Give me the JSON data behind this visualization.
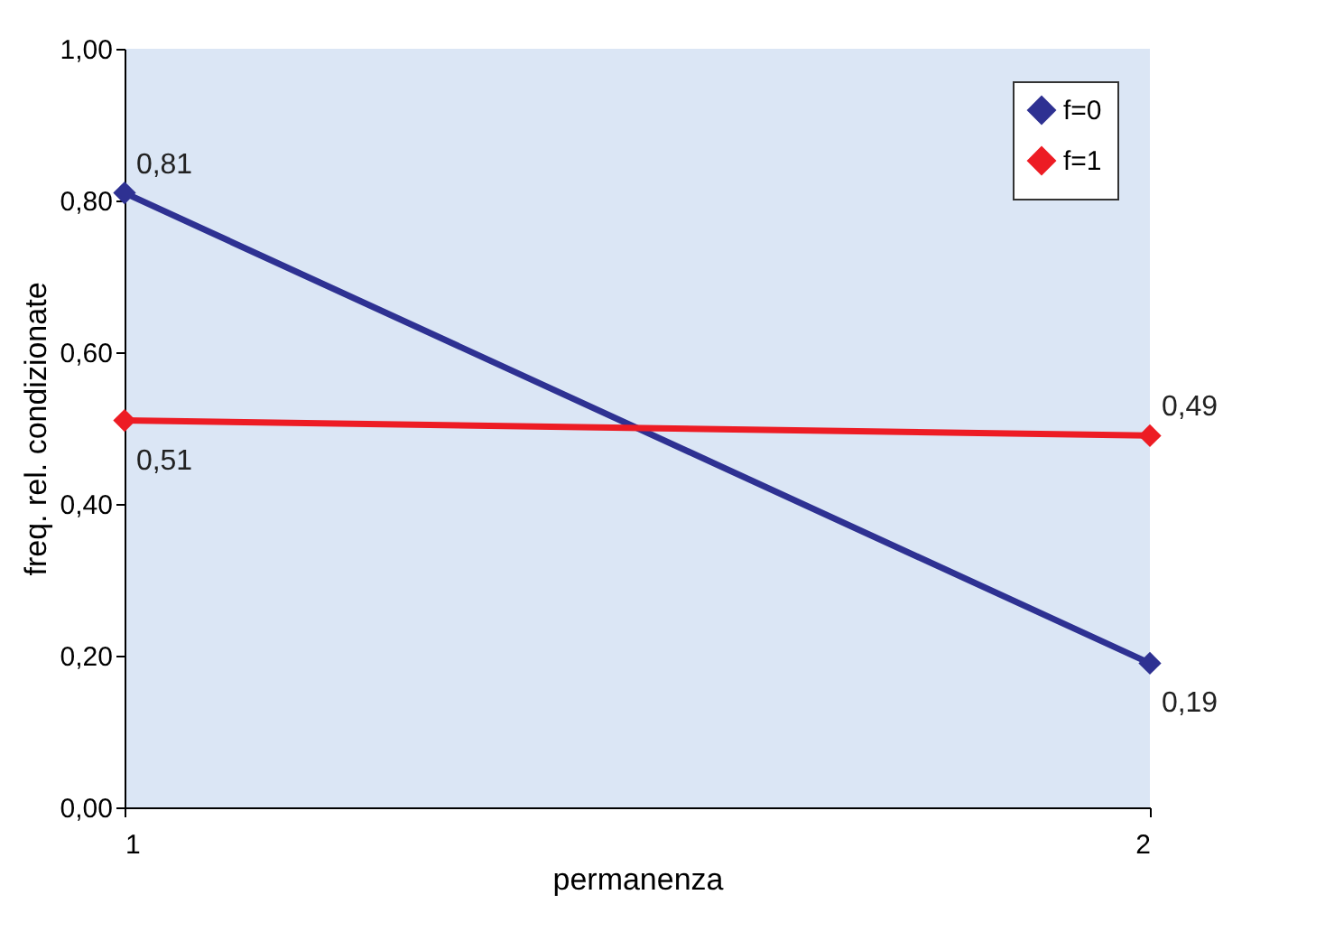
{
  "chart_data": {
    "type": "line",
    "xlabel": "permanenza",
    "ylabel": "freq. rel. condizionate",
    "x": [
      1,
      2
    ],
    "xlim": [
      1,
      2
    ],
    "xticks": [
      1,
      2
    ],
    "ylim": [
      0,
      1
    ],
    "yticks": [
      {
        "value": 0,
        "label": "0,00"
      },
      {
        "value": 0.2,
        "label": "0,20"
      },
      {
        "value": 0.4,
        "label": "0,40"
      },
      {
        "value": 0.6,
        "label": "0,60"
      },
      {
        "value": 0.8,
        "label": "0,80"
      },
      {
        "value": 1,
        "label": "1,00"
      }
    ],
    "series": [
      {
        "name": "f=0",
        "color": "#2e3192",
        "values": [
          0.81,
          0.19
        ],
        "value_labels": [
          "0,81",
          "0,19"
        ]
      },
      {
        "name": "f=1",
        "color": "#ed1c24",
        "values": [
          0.51,
          0.49
        ],
        "value_labels": [
          "0,51",
          "0,49"
        ]
      }
    ],
    "marker": "diamond",
    "line_style": "solid",
    "grid": false,
    "legend": "top right"
  }
}
